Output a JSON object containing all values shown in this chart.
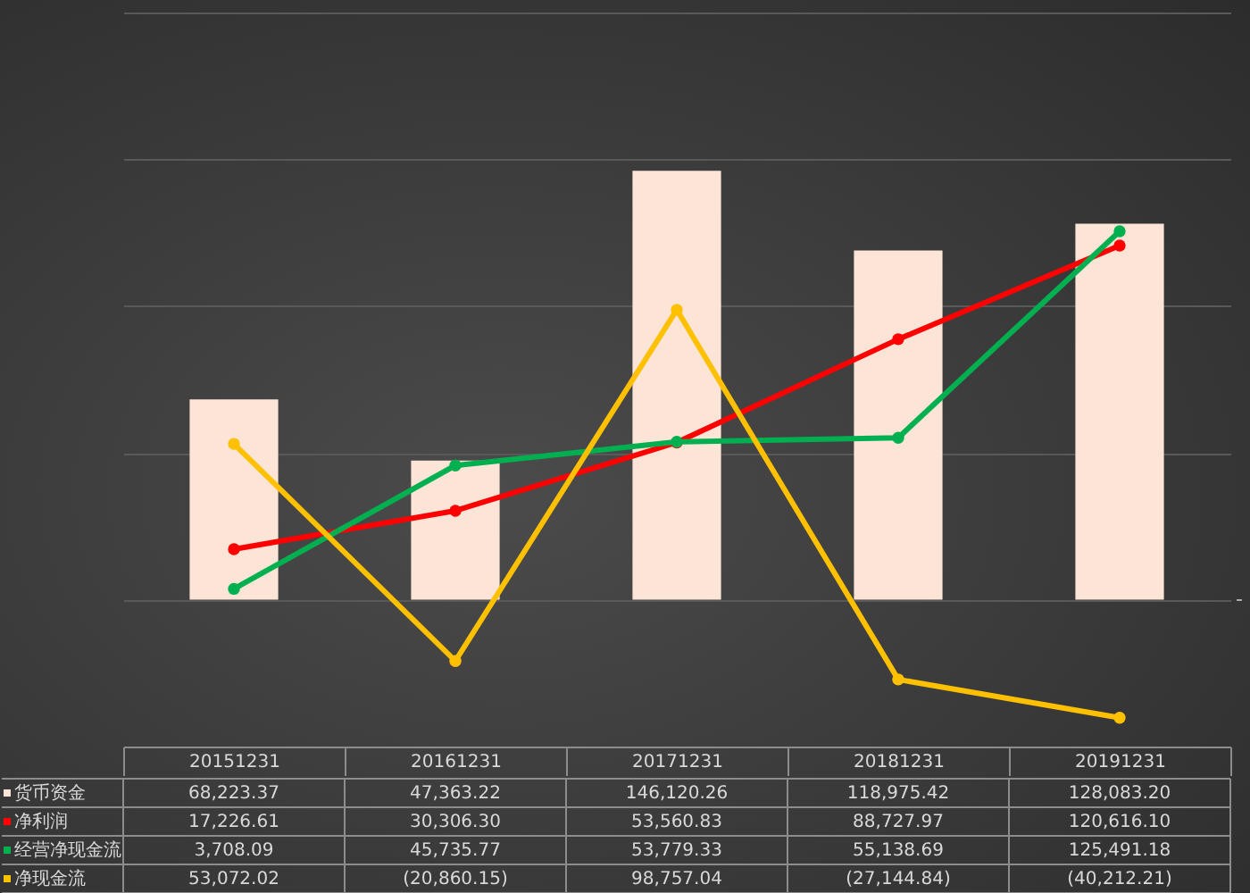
{
  "chart_data": {
    "type": "bar",
    "categories": [
      "20151231",
      "20161231",
      "20171231",
      "20181231",
      "20191231"
    ],
    "series": [
      {
        "name": "货币资金",
        "color": "#fce4d6",
        "values": [
          68223.37,
          47363.22,
          146120.26,
          118975.42,
          128083.2
        ],
        "value_labels": [
          "68,223.37",
          "47,363.22",
          "146,120.26",
          "118,975.42",
          "128,083.20"
        ]
      },
      {
        "name": "净利润",
        "type": "line",
        "color": "#ff0000",
        "values": [
          17226.61,
          30306.3,
          53560.83,
          88727.97,
          120616.1
        ],
        "value_labels": [
          "17,226.61",
          "30,306.30",
          "53,560.83",
          "88,727.97",
          "120,616.10"
        ]
      },
      {
        "name": "经营净现金流",
        "type": "line",
        "color": "#00b050",
        "values": [
          3708.09,
          45735.77,
          53779.33,
          55138.69,
          125491.18
        ],
        "value_labels": [
          "3,708.09",
          "45,735.77",
          "53,779.33",
          "55,138.69",
          "125,491.18"
        ]
      },
      {
        "name": "净现金流",
        "type": "line",
        "color": "#ffc000",
        "values": [
          53072.02,
          -20860.15,
          98757.04,
          -27144.84,
          -40212.21
        ],
        "value_labels": [
          "53,072.02",
          "(20,860.15)",
          "98,757.04",
          "(27,144.84)",
          "(40,212.21)"
        ]
      }
    ],
    "ylim": [
      -50000,
      200000
    ],
    "yticks": [
      {
        "value": 0,
        "label": null
      },
      {
        "value": 50000,
        "label": null
      },
      {
        "value": 100000,
        "label": null
      },
      {
        "value": 150000,
        "label": null
      },
      {
        "value": 200000,
        "label": null
      }
    ],
    "tick_labels": "x",
    "annotations": [
      "-"
    ],
    "grid": "y",
    "legend": "bottom",
    "marker": "circle"
  }
}
